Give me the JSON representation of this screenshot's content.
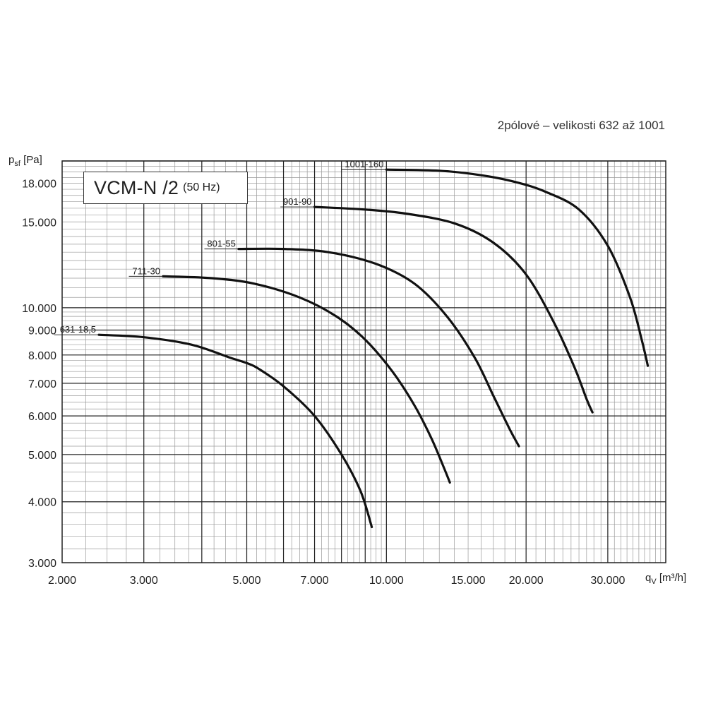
{
  "subtitle": "2pólové – velikosti 632 až 1001",
  "title_box": {
    "main": "VCM-N /2",
    "sub": "(50 Hz)"
  },
  "ylabel": {
    "main": "p",
    "sub": "sf",
    "unit": "[Pa]"
  },
  "xlabel": {
    "main": "q",
    "sub": "V",
    "unit": "[m³/h]"
  },
  "chart_data": {
    "type": "line",
    "x_scale": "log",
    "y_scale": "log",
    "xlim": [
      2000,
      40000
    ],
    "ylim": [
      3000,
      20000
    ],
    "grid": true,
    "x_ticks": [
      {
        "v": 2000,
        "label": "2.000"
      },
      {
        "v": 3000,
        "label": "3.000"
      },
      {
        "v": 5000,
        "label": "5.000"
      },
      {
        "v": 7000,
        "label": "7.000"
      },
      {
        "v": 10000,
        "label": "10.000"
      },
      {
        "v": 15000,
        "label": "15.000"
      },
      {
        "v": 20000,
        "label": "20.000"
      },
      {
        "v": 30000,
        "label": "30.000"
      }
    ],
    "y_ticks": [
      {
        "v": 3000,
        "label": "3.000"
      },
      {
        "v": 4000,
        "label": "4.000"
      },
      {
        "v": 5000,
        "label": "5.000"
      },
      {
        "v": 6000,
        "label": "6.000"
      },
      {
        "v": 7000,
        "label": "7.000"
      },
      {
        "v": 8000,
        "label": "8.000"
      },
      {
        "v": 9000,
        "label": "9.000"
      },
      {
        "v": 10000,
        "label": "10.000"
      },
      {
        "v": 15000,
        "label": "15.000"
      },
      {
        "v": 18000,
        "label": "18.000"
      }
    ],
    "series": [
      {
        "name": "631-18,5",
        "x": [
          2400,
          3000,
          3800,
          4600,
          5000,
          5300,
          6000,
          7000,
          8000,
          8800,
          9300
        ],
        "y": [
          8800,
          8700,
          8400,
          7900,
          7700,
          7500,
          6900,
          6000,
          5000,
          4200,
          3550
        ]
      },
      {
        "name": "711-30",
        "x": [
          3300,
          4200,
          5200,
          6500,
          7800,
          9000,
          10300,
          11500,
          12500,
          13300,
          13700
        ],
        "y": [
          11600,
          11500,
          11200,
          10500,
          9600,
          8600,
          7400,
          6300,
          5400,
          4700,
          4380
        ]
      },
      {
        "name": "801-55",
        "x": [
          4800,
          6000,
          7500,
          9500,
          11500,
          13500,
          15500,
          17000,
          18500,
          19300
        ],
        "y": [
          13200,
          13200,
          13000,
          12300,
          11200,
          9600,
          7900,
          6600,
          5600,
          5200
        ]
      },
      {
        "name": "901-90",
        "x": [
          7000,
          9000,
          11000,
          14000,
          17000,
          20000,
          23000,
          25500,
          27000,
          27800
        ],
        "y": [
          16100,
          15900,
          15600,
          14900,
          13600,
          11700,
          9300,
          7500,
          6500,
          6100
        ]
      },
      {
        "name": "1001-160",
        "x": [
          10000,
          13000,
          16000,
          19000,
          22000,
          26000,
          30000,
          33500,
          35500,
          36600
        ],
        "y": [
          19200,
          19100,
          18700,
          18100,
          17300,
          15900,
          13400,
          10500,
          8600,
          7600
        ]
      }
    ]
  }
}
